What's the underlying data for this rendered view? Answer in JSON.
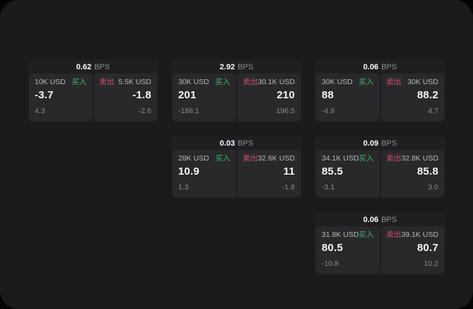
{
  "colors": {
    "background": "#050505",
    "panel_bg": "#1a1a1c",
    "card_bg": "#1f1f21",
    "tile_bg": "#29292c",
    "buy_green": "#42b663",
    "sell_red": "#cc5170",
    "value_white": "#f7f7f8",
    "label_gray": "#b9b9bd",
    "muted_gray": "#8b8b8f"
  },
  "cards": [
    {
      "bps_value": "0.62",
      "bps_unit": "BPS",
      "buy": {
        "amount": "10K USD",
        "side_label": "买入",
        "value": "-3.7",
        "delta": "4.3"
      },
      "sell": {
        "side_label": "卖出",
        "amount": "5.5K USD",
        "value": "-1.8",
        "delta": "-2.6"
      }
    },
    {
      "bps_value": "2.92",
      "bps_unit": "BPS",
      "buy": {
        "amount": "30K USD",
        "side_label": "买入",
        "value": "201",
        "delta": "-188.1"
      },
      "sell": {
        "side_label": "卖出",
        "amount": "30.1K USD",
        "value": "210",
        "delta": "196.5"
      }
    },
    {
      "bps_value": "0.06",
      "bps_unit": "BPS",
      "buy": {
        "amount": "30K USD",
        "side_label": "买入",
        "value": "88",
        "delta": "-4.9"
      },
      "sell": {
        "side_label": "卖出",
        "amount": "30K USD",
        "value": "88.2",
        "delta": "4.7"
      }
    },
    {
      "bps_value": "0.03",
      "bps_unit": "BPS",
      "buy": {
        "amount": "28K USD",
        "side_label": "买入",
        "value": "10.9",
        "delta": "1.3"
      },
      "sell": {
        "side_label": "卖出",
        "amount": "32.6K USD",
        "value": "11",
        "delta": "-1.8"
      }
    },
    {
      "bps_value": "0.09",
      "bps_unit": "BPS",
      "buy": {
        "amount": "34.1K USD",
        "side_label": "买入",
        "value": "85.5",
        "delta": "-3.1"
      },
      "sell": {
        "side_label": "卖出",
        "amount": "32.8K USD",
        "value": "85.8",
        "delta": "3.0"
      }
    },
    {
      "bps_value": "0.06",
      "bps_unit": "BPS",
      "buy": {
        "amount": "31.8K USD",
        "side_label": "买入",
        "value": "80.5",
        "delta": "-10.8"
      },
      "sell": {
        "side_label": "卖出",
        "amount": "39.1K USD",
        "value": "80.7",
        "delta": "10.2"
      }
    }
  ]
}
